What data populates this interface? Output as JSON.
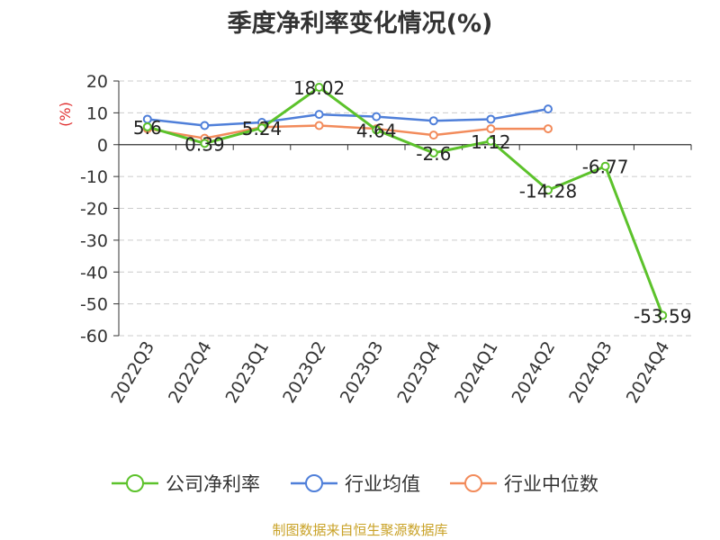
{
  "chart_data": {
    "type": "line",
    "title": "季度净利率变化情况(%)",
    "ylabel": "(%)",
    "ylim": [
      -60,
      20
    ],
    "yticks": [
      20,
      10,
      0,
      -10,
      -20,
      -30,
      -40,
      -50,
      -60
    ],
    "categories": [
      "2022Q3",
      "2022Q4",
      "2023Q1",
      "2023Q2",
      "2023Q3",
      "2023Q4",
      "2024Q1",
      "2024Q2",
      "2024Q3",
      "2024Q4"
    ],
    "grid": true,
    "legend_position": "bottom",
    "series": [
      {
        "name": "公司净利率",
        "color": "#5cc22b",
        "values": [
          5.6,
          0.39,
          5.24,
          18.02,
          4.64,
          -2.6,
          1.12,
          -14.28,
          -6.77,
          -53.59
        ],
        "labels": [
          "5.6",
          "0.39",
          "5.24",
          "18.02",
          "4.64",
          "-2.6",
          "1.12",
          "-14.28",
          "-6.77",
          "-53.59"
        ]
      },
      {
        "name": "行业均值",
        "color": "#4f7fd9",
        "values": [
          8.0,
          6.0,
          7.0,
          9.5,
          8.8,
          7.5,
          8.0,
          11.2,
          null,
          null
        ]
      },
      {
        "name": "行业中位数",
        "color": "#f28b5b",
        "values": [
          5.0,
          2.0,
          5.5,
          6.0,
          5.0,
          3.0,
          5.0,
          5.0,
          null,
          null
        ]
      }
    ]
  },
  "source": "制图数据来自恒生聚源数据库"
}
